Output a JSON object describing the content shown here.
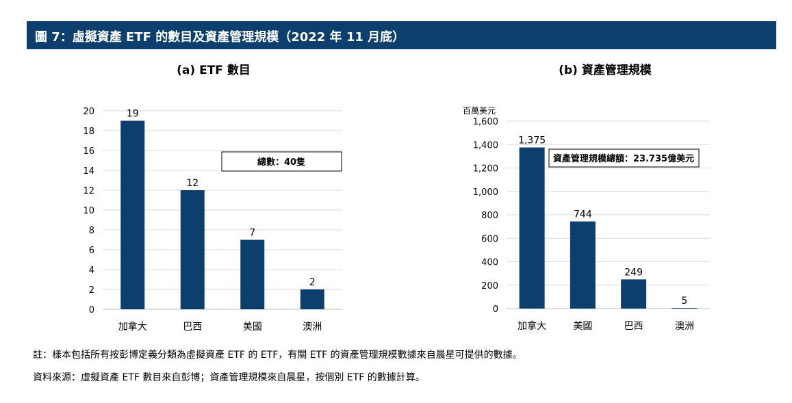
{
  "figure_title": "圖 7：虛擬資產 ETF 的數目及資產管理規模（2022 年 11 月底）",
  "chart_data": [
    {
      "type": "bar",
      "title": "(a)  ETF 數目",
      "categories": [
        "加拿大",
        "巴西",
        "美國",
        "澳洲"
      ],
      "values": [
        19,
        12,
        7,
        2
      ],
      "value_labels": [
        "19",
        "12",
        "7",
        "2"
      ],
      "ylim": [
        0,
        20
      ],
      "yticks": [
        0,
        2,
        4,
        6,
        8,
        10,
        12,
        14,
        16,
        18,
        20
      ],
      "ytick_labels": [
        "0",
        "2",
        "4",
        "6",
        "8",
        "10",
        "12",
        "14",
        "16",
        "18",
        "20"
      ],
      "ylabel": "",
      "grid": true,
      "bar_color": "#0d3f6e",
      "annotation": "總數：40隻"
    },
    {
      "type": "bar",
      "title": "(b)  資產管理規模",
      "categories": [
        "加拿大",
        "美國",
        "巴西",
        "澳洲"
      ],
      "values": [
        1375,
        744,
        249,
        5
      ],
      "value_labels": [
        "1,375",
        "744",
        "249",
        "5"
      ],
      "ylim": [
        0,
        1600
      ],
      "yticks": [
        0,
        200,
        400,
        600,
        800,
        1000,
        1200,
        1400,
        1600
      ],
      "ytick_labels": [
        "0",
        "200",
        "400",
        "600",
        "800",
        "1,000",
        "1,200",
        "1,400",
        "1,600"
      ],
      "ylabel": "百萬美元",
      "grid": true,
      "bar_color": "#0d3f6e",
      "annotation": "資產管理規模總額：23.735億美元"
    }
  ],
  "notes": {
    "note": "註：樣本包括所有按彭博定義分類為虛擬資產 ETF 的 ETF，有關 ETF 的資產管理規模數據來自晨星可提供的數據。",
    "source": "資料來源：虛擬資產 ETF 數目來自彭博；資產管理規模來自晨星，按個別 ETF 的數據計算。"
  }
}
